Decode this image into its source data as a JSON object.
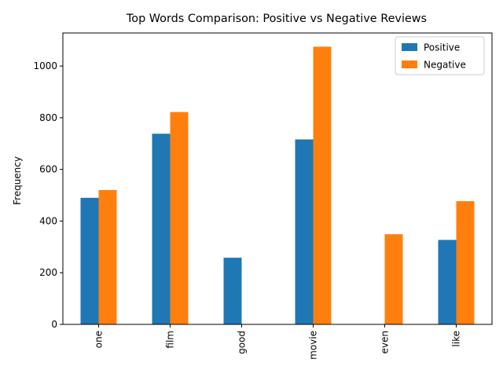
{
  "chart_data": {
    "type": "bar",
    "title": "Top Words Comparison: Positive vs Negative Reviews",
    "xlabel": "",
    "ylabel": "Frequency",
    "categories": [
      "one",
      "film",
      "good",
      "movie",
      "even",
      "like"
    ],
    "series": [
      {
        "name": "Positive",
        "color": "#1f77b4",
        "values": [
          490,
          738,
          258,
          716,
          0,
          327
        ]
      },
      {
        "name": "Negative",
        "color": "#ff7f0e",
        "values": [
          520,
          822,
          0,
          1075,
          349,
          477
        ]
      }
    ],
    "ylim": [
      0,
      1128
    ],
    "yticks": [
      0,
      200,
      400,
      600,
      800,
      1000
    ],
    "legend_position": "top-right",
    "grid": false
  }
}
